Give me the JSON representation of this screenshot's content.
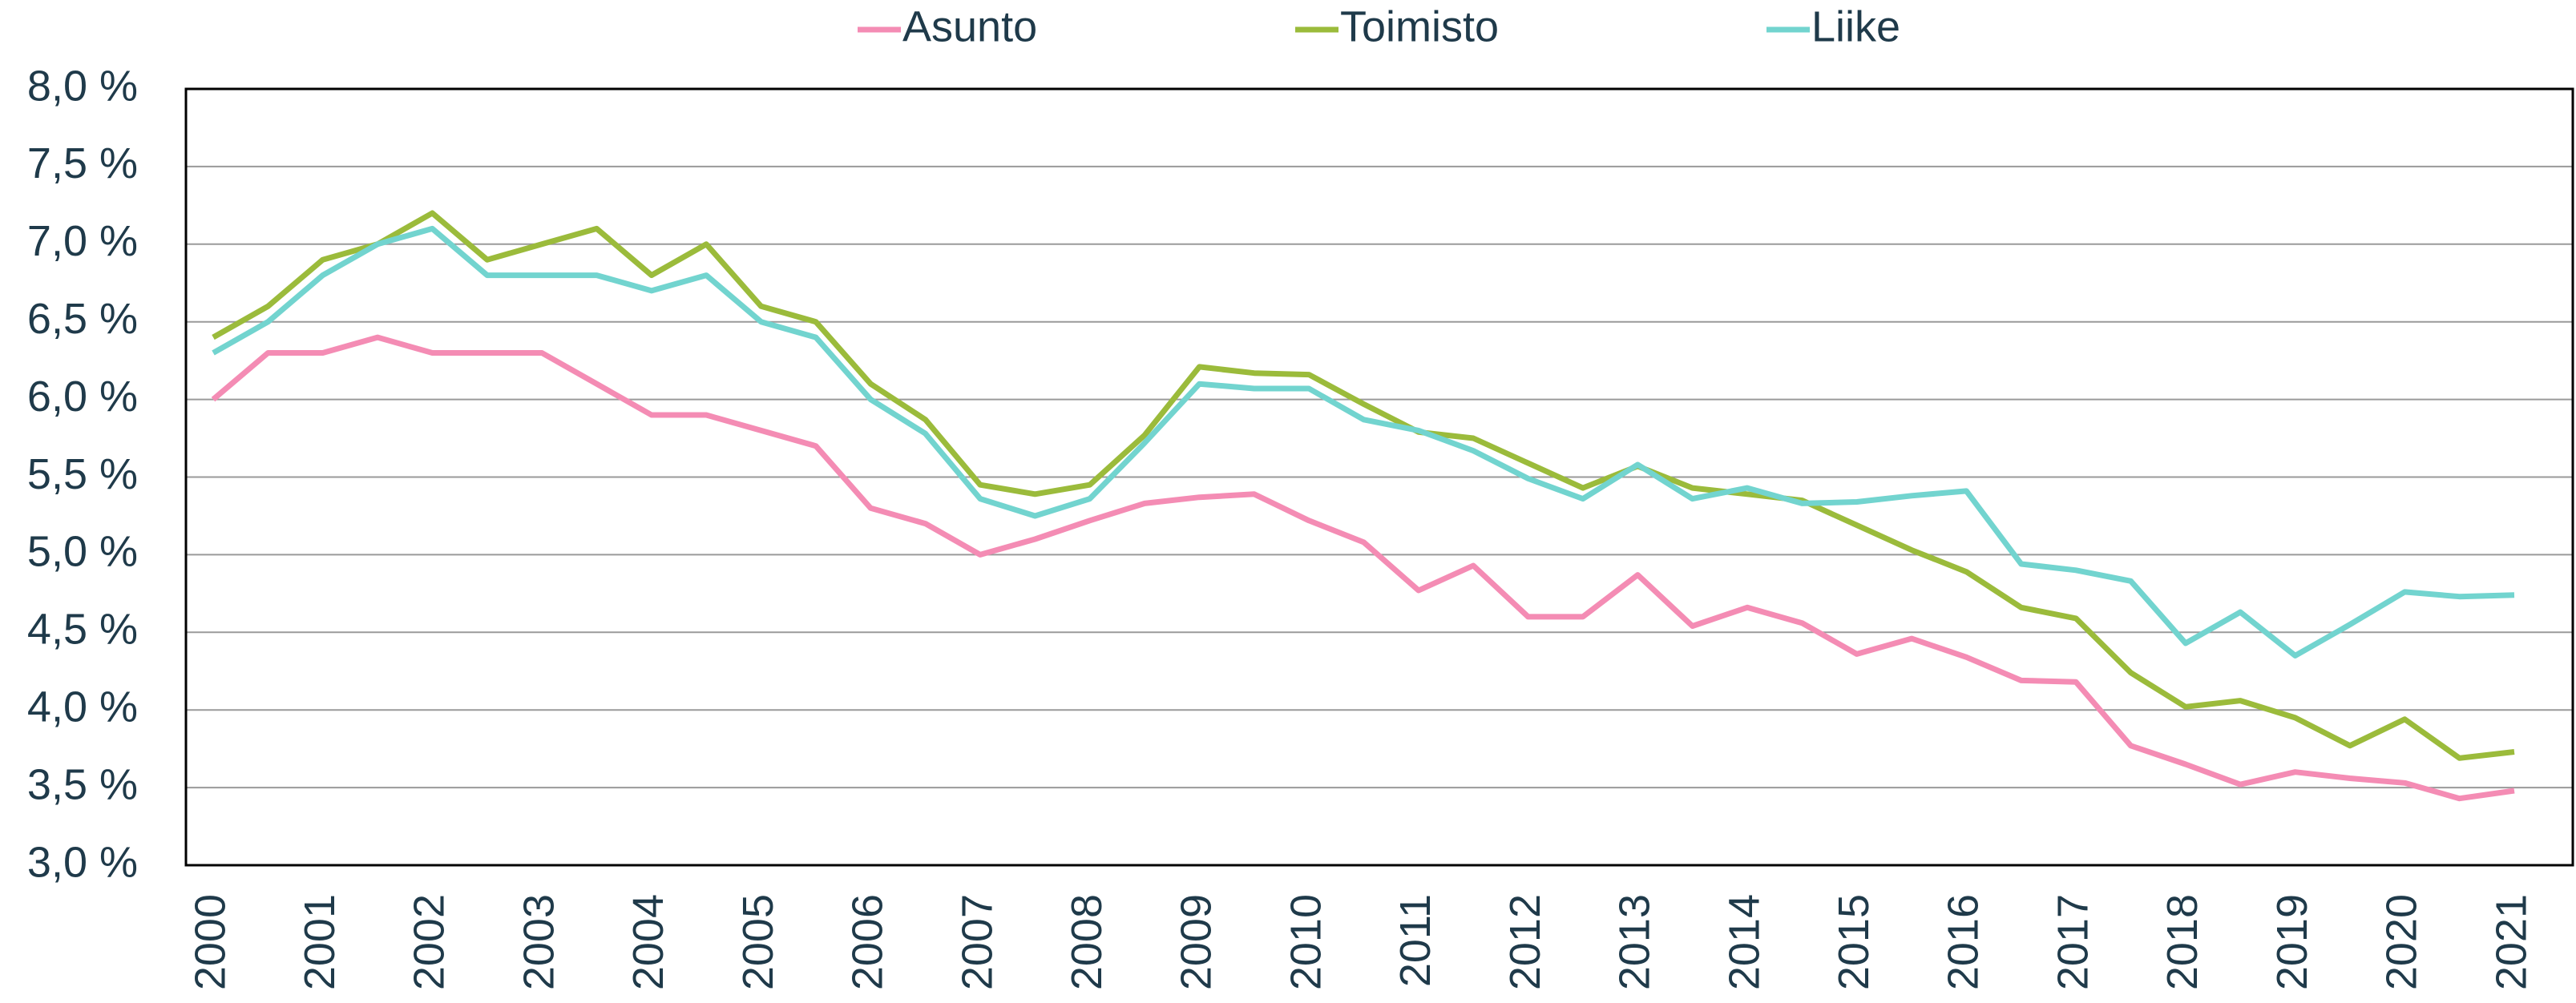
{
  "chart_data": {
    "type": "line",
    "categories": [
      "2000",
      null,
      "2001",
      null,
      "2002",
      null,
      "2003",
      null,
      "2004",
      null,
      "2005",
      null,
      "2006",
      null,
      "2007",
      null,
      "2008",
      null,
      "2009",
      null,
      "2010",
      null,
      "2011",
      null,
      "2012",
      null,
      "2013",
      null,
      "2014",
      null,
      "2015",
      null,
      "2016",
      null,
      "2017",
      null,
      "2018",
      null,
      "2019",
      null,
      "2020",
      null,
      "2021"
    ],
    "series": [
      {
        "name": "Asunto",
        "color": "#f48cb4",
        "values": [
          6.0,
          6.3,
          6.3,
          6.4,
          6.3,
          6.3,
          6.3,
          6.1,
          5.9,
          5.9,
          5.8,
          5.7,
          5.3,
          5.2,
          5.0,
          5.1,
          5.22,
          5.33,
          5.37,
          5.39,
          5.22,
          5.08,
          4.77,
          4.93,
          4.6,
          4.6,
          4.87,
          4.54,
          4.66,
          4.56,
          4.36,
          4.46,
          4.34,
          4.19,
          4.18,
          3.77,
          3.65,
          3.52,
          3.6,
          3.56,
          3.53,
          3.43,
          3.48
        ]
      },
      {
        "name": "Toimisto",
        "color": "#9bbb3b",
        "values": [
          6.4,
          6.6,
          6.9,
          7.0,
          7.2,
          6.9,
          7.0,
          7.1,
          6.8,
          7.0,
          6.6,
          6.5,
          6.1,
          5.87,
          5.45,
          5.39,
          5.45,
          5.77,
          6.21,
          6.17,
          6.16,
          5.97,
          5.79,
          5.75,
          5.59,
          5.43,
          5.57,
          5.43,
          5.39,
          5.35,
          5.19,
          5.03,
          4.89,
          4.66,
          4.59,
          4.24,
          4.02,
          4.06,
          3.95,
          3.77,
          3.94,
          3.69,
          3.73
        ]
      },
      {
        "name": "Liike",
        "color": "#72d4cf",
        "values": [
          6.3,
          6.5,
          6.8,
          7.0,
          7.1,
          6.8,
          6.8,
          6.8,
          6.7,
          6.8,
          6.5,
          6.4,
          6.0,
          5.78,
          5.36,
          5.25,
          5.36,
          5.72,
          6.1,
          6.07,
          6.07,
          5.87,
          5.8,
          5.67,
          5.49,
          5.36,
          5.58,
          5.36,
          5.43,
          5.33,
          5.34,
          5.38,
          5.41,
          4.94,
          4.9,
          4.83,
          4.43,
          4.63,
          4.35,
          4.55,
          4.76,
          4.73,
          4.74
        ]
      }
    ],
    "ylim": [
      3.0,
      8.0
    ],
    "yticks": [
      {
        "value": 3.0,
        "label": "3,0 %"
      },
      {
        "value": 3.5,
        "label": "3,5 %"
      },
      {
        "value": 4.0,
        "label": "4,0 %"
      },
      {
        "value": 4.5,
        "label": "4,5 %"
      },
      {
        "value": 5.0,
        "label": "5,0 %"
      },
      {
        "value": 5.5,
        "label": "5,5 %"
      },
      {
        "value": 6.0,
        "label": "6,0 %"
      },
      {
        "value": 6.5,
        "label": "6,5 %"
      },
      {
        "value": 7.0,
        "label": "7,0 %"
      },
      {
        "value": 7.5,
        "label": "7,5 %"
      },
      {
        "value": 8.0,
        "label": "8,0 %"
      }
    ],
    "grid": true,
    "legend": "top"
  }
}
